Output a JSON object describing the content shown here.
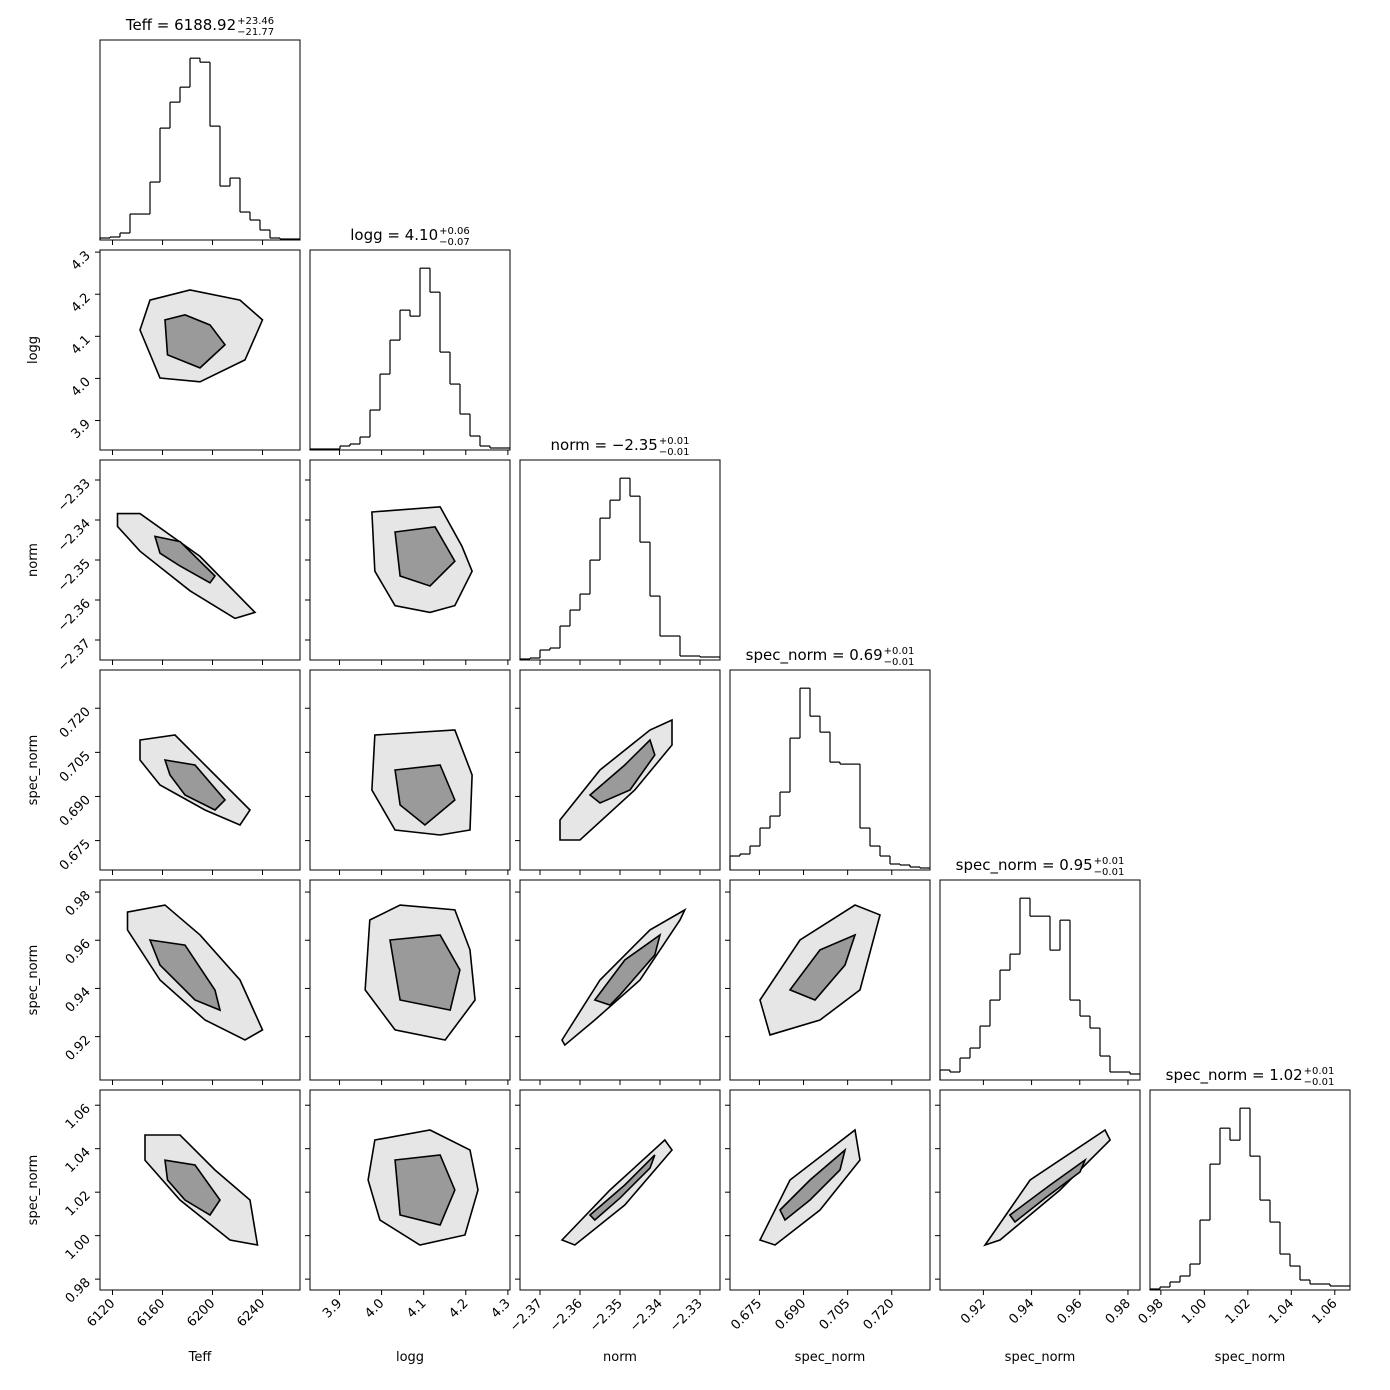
{
  "chart_data": {
    "type": "corner",
    "parameters": [
      {
        "label": "Teff",
        "title": "Teff = 6188.92",
        "plus": "+23.46",
        "minus": "−21.77",
        "lim": [
          6110,
          6270
        ],
        "ticks": [
          6120,
          6160,
          6200,
          6240
        ],
        "bins": [
          6110,
          6118,
          6126,
          6134,
          6142,
          6150,
          6158,
          6166,
          6174,
          6182,
          6190,
          6198,
          6206,
          6214,
          6222,
          6230,
          6238,
          6246,
          6254,
          6262,
          6270
        ],
        "counts": [
          2,
          3,
          7,
          26,
          26,
          58,
          112,
          138,
          153,
          182,
          178,
          114,
          54,
          62,
          28,
          20,
          10,
          2,
          1,
          1
        ]
      },
      {
        "label": "logg",
        "title": "logg = 4.10",
        "plus": "+0.06",
        "minus": "−0.07",
        "lim": [
          3.83,
          4.305
        ],
        "ticks": [
          3.9,
          {
            "value": 4.0,
            "label": "4.0"
          },
          4.1,
          4.2,
          4.3
        ],
        "bins": [
          3.83,
          3.85375,
          3.8775,
          3.90125,
          3.925,
          3.94875,
          3.9725,
          3.99625,
          4.02,
          4.04375,
          4.0675,
          4.09125,
          4.115,
          4.13875,
          4.1625,
          4.18625,
          4.21,
          4.23375,
          4.2575,
          4.28125,
          4.305
        ],
        "counts": [
          1,
          1,
          1,
          4,
          6,
          13,
          40,
          76,
          110,
          140,
          134,
          182,
          158,
          98,
          66,
          36,
          14,
          4,
          2,
          2
        ]
      },
      {
        "label": "norm",
        "title": "norm = −2.35",
        "plus": "+0.01",
        "minus": "−0.01",
        "lim": [
          -2.375,
          -2.325
        ],
        "ticks": [
          {
            "value": -2.37,
            "label": "−2.37"
          },
          {
            "value": -2.36,
            "label": "−2.36"
          },
          {
            "value": -2.35,
            "label": "−2.35"
          },
          {
            "value": -2.34,
            "label": "−2.34"
          },
          {
            "value": -2.33,
            "label": "−2.33"
          }
        ],
        "bins": [
          -2.375,
          -2.3725,
          -2.37,
          -2.3675,
          -2.365,
          -2.3625,
          -2.36,
          -2.3575,
          -2.355,
          -2.3525,
          -2.35,
          -2.3475,
          -2.345,
          -2.3425,
          -2.34,
          -2.3375,
          -2.335,
          -2.3325,
          -2.33,
          -2.3275,
          -2.325
        ],
        "counts": [
          1,
          2,
          10,
          12,
          34,
          50,
          66,
          100,
          142,
          160,
          182,
          164,
          118,
          64,
          24,
          24,
          4,
          4,
          3,
          3
        ]
      },
      {
        "label": "spec_norm",
        "title": "spec_norm = 0.69",
        "plus": "+0.01",
        "minus": "−0.01",
        "lim": [
          0.665,
          0.733
        ],
        "ticks": [
          0.675,
          {
            "value": 0.69,
            "label": "0.690"
          },
          0.705,
          {
            "value": 0.72,
            "label": "0.720"
          }
        ],
        "bins": [
          0.665,
          0.6684,
          0.6718,
          0.6752,
          0.6786,
          0.682,
          0.6854,
          0.6888,
          0.6922,
          0.6956,
          0.699,
          0.7024,
          0.7058,
          0.7092,
          0.7126,
          0.716,
          0.7194,
          0.7228,
          0.7262,
          0.7296,
          0.733
        ],
        "counts": [
          14,
          16,
          24,
          42,
          54,
          78,
          132,
          182,
          154,
          138,
          108,
          106,
          106,
          42,
          24,
          14,
          6,
          5,
          3,
          2
        ]
      },
      {
        "label": "spec_norm",
        "title": "spec_norm = 0.95",
        "plus": "+0.01",
        "minus": "−0.01",
        "lim": [
          0.902,
          0.985
        ],
        "ticks": [
          0.92,
          0.94,
          0.96,
          0.98
        ],
        "bins": [
          0.902,
          0.90615,
          0.9103,
          0.91445,
          0.9186,
          0.92275,
          0.9269,
          0.93105,
          0.9352,
          0.93935,
          0.9435,
          0.94765,
          0.9518,
          0.95595,
          0.9601,
          0.96425,
          0.9684,
          0.97255,
          0.9767,
          0.98085,
          0.985
        ],
        "counts": [
          10,
          8,
          22,
          32,
          54,
          80,
          110,
          126,
          182,
          164,
          164,
          130,
          160,
          80,
          64,
          52,
          24,
          8,
          8,
          6
        ]
      },
      {
        "label": "spec_norm",
        "title": "spec_norm = 1.02",
        "plus": "+0.01",
        "minus": "−0.01",
        "lim": [
          0.975,
          1.067
        ],
        "ticks": [
          0.98,
          {
            "value": 1.0,
            "label": "1.00"
          },
          1.02,
          1.04,
          1.06
        ],
        "bins": [
          0.975,
          0.9796,
          0.9842,
          0.9888,
          0.9934,
          0.998,
          1.0026,
          1.0072,
          1.0118,
          1.0164,
          1.021,
          1.0256,
          1.0302,
          1.0348,
          1.0394,
          1.044,
          1.0486,
          1.0532,
          1.0578,
          1.0624,
          1.067
        ],
        "counts": [
          1,
          3,
          8,
          14,
          26,
          70,
          126,
          162,
          150,
          182,
          134,
          90,
          68,
          36,
          24,
          10,
          6,
          6,
          4,
          4
        ]
      }
    ],
    "panels": [
      {
        "outer": {
          "x": [
            6142,
            6150,
            6182,
            6222,
            6240,
            6226,
            6190,
            6158
          ],
          "y": [
            4.115,
            4.186,
            4.21,
            4.186,
            4.139,
            4.044,
            3.992,
            4.001
          ]
        },
        "inner": {
          "x": [
            6162,
            6178,
            6198,
            6210,
            6190,
            6164
          ],
          "y": [
            4.139,
            4.151,
            4.127,
            4.08,
            4.025,
            4.056
          ]
        }
      },
      {
        "outer": {
          "x": [
            6124,
            6142,
            6190,
            6234,
            6218,
            6182,
            6142,
            6124
          ],
          "y": [
            -2.3384,
            -2.3384,
            -2.3491,
            -2.3631,
            -2.3646,
            -2.3577,
            -2.3478,
            -2.3416
          ]
        },
        "inner": {
          "x": [
            6154,
            6174,
            6202,
            6198,
            6174,
            6158
          ],
          "y": [
            -2.3441,
            -2.3454,
            -2.354,
            -2.3557,
            -2.3515,
            -2.3483
          ]
        }
      },
      {
        "outer": {
          "x": [
            3.977,
            4.139,
            4.191,
            4.215,
            4.174,
            4.115,
            4.032,
            3.984
          ],
          "y": [
            -2.338,
            -2.3367,
            -2.3466,
            -2.3528,
            -2.3614,
            -2.3631,
            -2.3614,
            -2.3528
          ]
        },
        "inner": {
          "x": [
            4.032,
            4.127,
            4.174,
            4.115,
            4.044
          ],
          "y": [
            -2.343,
            -2.3417,
            -2.3503,
            -2.3565,
            -2.354
          ]
        }
      },
      {
        "outer": {
          "x": [
            6142,
            6170,
            6202,
            6230,
            6222,
            6194,
            6158,
            6142
          ],
          "y": [
            0.7092,
            0.7109,
            0.6973,
            0.6854,
            0.6803,
            0.6854,
            0.6939,
            0.7024
          ]
        },
        "inner": {
          "x": [
            6162,
            6186,
            6210,
            6202,
            6178,
            6166
          ],
          "y": [
            0.7024,
            0.7007,
            0.6888,
            0.6854,
            0.6905,
            0.6973
          ]
        }
      },
      {
        "outer": {
          "x": [
            3.984,
            4.174,
            4.215,
            4.21,
            4.139,
            4.032,
            3.977
          ],
          "y": [
            0.7109,
            0.7126,
            0.6973,
            0.6786,
            0.6769,
            0.6786,
            0.6922
          ]
        },
        "inner": {
          "x": [
            4.032,
            4.139,
            4.174,
            4.103,
            4.044
          ],
          "y": [
            0.699,
            0.7007,
            0.6888,
            0.6803,
            0.6871
          ]
        }
      },
      {
        "outer": {
          "x": [
            -2.365,
            -2.355,
            -2.3425,
            -2.337,
            -2.337,
            -2.3463,
            -2.36,
            -2.365
          ],
          "y": [
            0.682,
            0.699,
            0.7126,
            0.716,
            0.7075,
            0.6922,
            0.6752,
            0.6752
          ]
        },
        "inner": {
          "x": [
            -2.3575,
            -2.3488,
            -2.3425,
            -2.3413,
            -2.3475,
            -2.355
          ],
          "y": [
            0.6905,
            0.7007,
            0.7092,
            0.7041,
            0.6922,
            0.6878
          ]
        }
      },
      {
        "outer": {
          "x": [
            6132,
            6162,
            6190,
            6222,
            6240,
            6226,
            6194,
            6158,
            6132
          ],
          "y": [
            0.9717,
            0.9746,
            0.9622,
            0.9435,
            0.9228,
            0.9186,
            0.9269,
            0.9435,
            0.9643
          ]
        },
        "inner": {
          "x": [
            6150,
            6178,
            6202,
            6206,
            6186,
            6158
          ],
          "y": [
            0.9601,
            0.958,
            0.9393,
            0.931,
            0.9352,
            0.9497
          ]
        }
      },
      {
        "outer": {
          "x": [
            3.972,
            4.044,
            4.174,
            4.21,
            4.222,
            4.151,
            4.032,
            3.961
          ],
          "y": [
            0.9684,
            0.9746,
            0.9726,
            0.956,
            0.9352,
            0.9186,
            0.9228,
            0.9394
          ]
        },
        "inner": {
          "x": [
            4.02,
            4.139,
            4.186,
            4.163,
            4.044
          ],
          "y": [
            0.9601,
            0.9622,
            0.9477,
            0.931,
            0.9352
          ]
        }
      },
      {
        "outer": {
          "x": [
            -2.3645,
            -2.355,
            -2.3425,
            -2.3338,
            -2.335,
            -2.345,
            -2.3563,
            -2.3638
          ],
          "y": [
            0.9186,
            0.9435,
            0.9643,
            0.9726,
            0.9684,
            0.9435,
            0.9269,
            0.9165
          ]
        },
        "inner": {
          "x": [
            -2.3563,
            -2.3488,
            -2.34,
            -2.3413,
            -2.35,
            -2.3525
          ],
          "y": [
            0.9352,
            0.9518,
            0.9622,
            0.9539,
            0.9373,
            0.9331
          ]
        }
      },
      {
        "outer": {
          "x": [
            0.6752,
            0.6888,
            0.7075,
            0.716,
            0.7092,
            0.6956,
            0.6786
          ],
          "y": [
            0.9352,
            0.9601,
            0.9746,
            0.9705,
            0.9394,
            0.9269,
            0.9207
          ]
        },
        "inner": {
          "x": [
            0.6854,
            0.6956,
            0.7075,
            0.7041,
            0.6939
          ],
          "y": [
            0.9394,
            0.956,
            0.9622,
            0.9497,
            0.9352
          ]
        }
      },
      {
        "outer": {
          "x": [
            6146,
            6174,
            6202,
            6230,
            6236,
            6214,
            6174,
            6146
          ],
          "y": [
            1.0463,
            1.0463,
            1.0302,
            1.0164,
            0.9957,
            0.998,
            1.0164,
            1.0347
          ]
        },
        "inner": {
          "x": [
            6162,
            6186,
            6206,
            6198,
            6178,
            6164
          ],
          "y": [
            1.0347,
            1.0325,
            1.0164,
            1.0095,
            1.0164,
            1.0256
          ]
        }
      },
      {
        "outer": {
          "x": [
            3.984,
            4.115,
            4.21,
            4.229,
            4.198,
            4.091,
            3.996,
            3.968
          ],
          "y": [
            1.044,
            1.0486,
            1.0394,
            1.021,
            1.0003,
            0.9957,
            1.0072,
            1.0256
          ]
        },
        "inner": {
          "x": [
            4.032,
            4.139,
            4.174,
            4.139,
            4.044
          ],
          "y": [
            1.0348,
            1.0371,
            1.021,
            1.0049,
            1.0095
          ]
        }
      },
      {
        "outer": {
          "x": [
            -2.3645,
            -2.3525,
            -2.3388,
            -2.337,
            -2.3488,
            -2.3613
          ],
          "y": [
            0.998,
            1.021,
            1.044,
            1.0394,
            1.0141,
            0.9957
          ]
        },
        "inner": {
          "x": [
            -2.3575,
            -2.3488,
            -2.3413,
            -2.3425,
            -2.35,
            -2.3563
          ],
          "y": [
            1.0095,
            1.0233,
            1.0371,
            1.0311,
            1.0173,
            1.0072
          ]
        }
      },
      {
        "outer": {
          "x": [
            0.6752,
            0.6854,
            0.7075,
            0.7092,
            0.6956,
            0.6803
          ],
          "y": [
            0.998,
            1.0256,
            1.0486,
            1.0348,
            1.0118,
            0.9957
          ]
        },
        "inner": {
          "x": [
            0.682,
            0.6922,
            0.7041,
            0.7024,
            0.6922,
            0.6837
          ],
          "y": [
            1.0118,
            1.0256,
            1.0394,
            1.0302,
            1.0164,
            1.0072
          ]
        }
      },
      {
        "outer": {
          "x": [
            0.9207,
            0.9394,
            0.9705,
            0.9726,
            0.9518,
            0.9269
          ],
          "y": [
            0.9957,
            1.0256,
            1.0486,
            1.044,
            1.021,
            0.998
          ]
        },
        "inner": {
          "x": [
            0.931,
            0.9477,
            0.9622,
            0.9601,
            0.9457,
            0.9331
          ],
          "y": [
            1.0095,
            1.0233,
            1.0348,
            1.0293,
            1.0173,
            1.0063
          ]
        }
      }
    ]
  }
}
